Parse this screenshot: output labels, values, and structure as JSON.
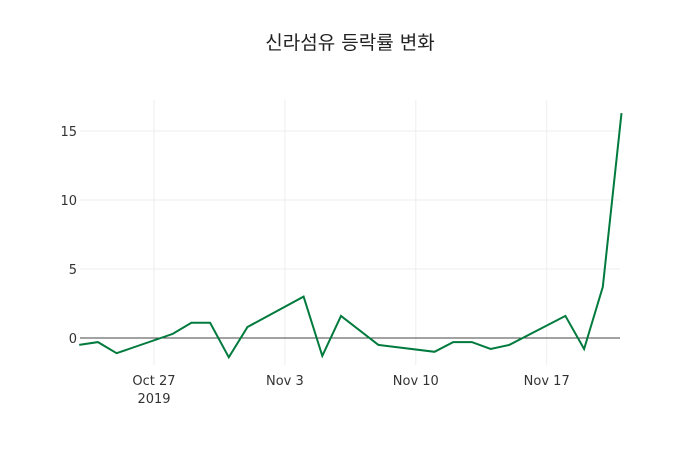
{
  "chart_data": {
    "type": "line",
    "title": "신라섬유 등락률 변화",
    "xlabel": "",
    "ylabel": "",
    "ylim": [
      -2.2,
      17.2
    ],
    "grid": true,
    "legend": "none",
    "line_color": "#007a3d",
    "x": [
      "2019-10-23",
      "2019-10-24",
      "2019-10-25",
      "2019-10-28",
      "2019-10-29",
      "2019-10-30",
      "2019-10-31",
      "2019-11-01",
      "2019-11-04",
      "2019-11-05",
      "2019-11-06",
      "2019-11-08",
      "2019-11-11",
      "2019-11-12",
      "2019-11-13",
      "2019-11-14",
      "2019-11-15",
      "2019-11-18",
      "2019-11-19",
      "2019-11-20",
      "2019-11-21"
    ],
    "values": [
      -0.5,
      -0.3,
      -1.1,
      0.3,
      1.1,
      1.1,
      -1.4,
      0.8,
      3.0,
      -1.3,
      1.6,
      -0.5,
      -1.0,
      -0.3,
      -0.3,
      -0.8,
      -0.5,
      1.6,
      -0.8,
      3.7,
      16.3
    ],
    "x_ticks": [
      {
        "label": "Oct 27",
        "sub": "2019",
        "date": "2019-10-27"
      },
      {
        "label": "Nov 3",
        "sub": "",
        "date": "2019-11-03"
      },
      {
        "label": "Nov 10",
        "sub": "",
        "date": "2019-11-10"
      },
      {
        "label": "Nov 17",
        "sub": "",
        "date": "2019-11-17"
      }
    ],
    "y_ticks": [
      0,
      5,
      10,
      15
    ]
  }
}
